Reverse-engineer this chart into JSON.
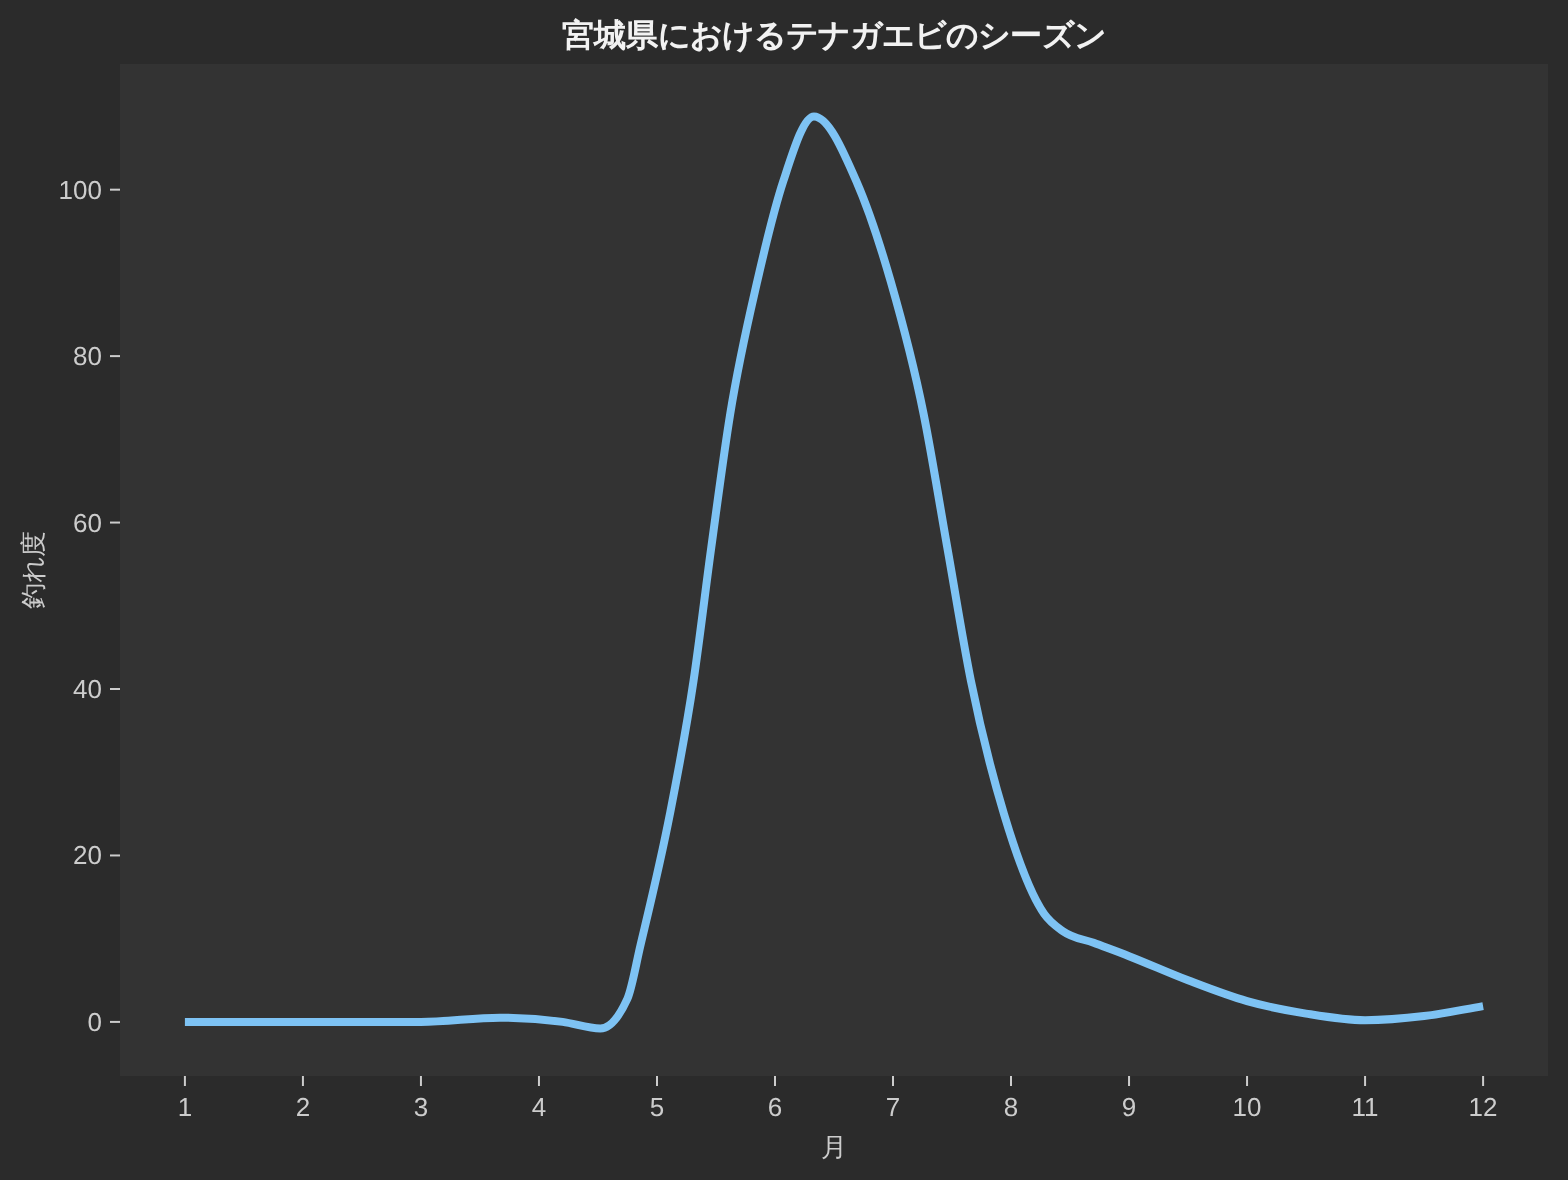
{
  "chart_data": {
    "type": "line",
    "title": "宮城県におけるテナガエビのシーズン",
    "xlabel": "月",
    "ylabel": "釣れ度",
    "x": [
      1,
      2,
      3,
      3.67,
      4.2,
      4.52,
      4.75,
      4.86,
      5.11,
      5.31,
      5.46,
      5.62,
      5.85,
      6.07,
      6.33,
      6.69,
      6.98,
      7.26,
      7.46,
      7.66,
      7.94,
      8.28,
      8.44,
      8.7,
      9.0,
      9.5,
      10.0,
      10.5,
      11.0,
      11.5,
      12
    ],
    "series": [
      {
        "color": "#7ec3f4",
        "values": [
          0,
          0,
          0,
          0.5,
          0,
          -0.8,
          2.8,
          9.2,
          25,
          41,
          57,
          73,
          89,
          101,
          108.8,
          101,
          89,
          73,
          57,
          41,
          25,
          13,
          10.9,
          9.5,
          7.9,
          5.0,
          2.5,
          1.0,
          0.2,
          0.7,
          1.9
        ]
      }
    ],
    "xlim": [
      0.45,
      12.55
    ],
    "ylim": [
      -6.5,
      115.1
    ],
    "xticks": [
      1,
      2,
      3,
      4,
      5,
      6,
      7,
      8,
      9,
      10,
      11,
      12
    ],
    "yticks": [
      0,
      20,
      40,
      60,
      80,
      100
    ]
  }
}
